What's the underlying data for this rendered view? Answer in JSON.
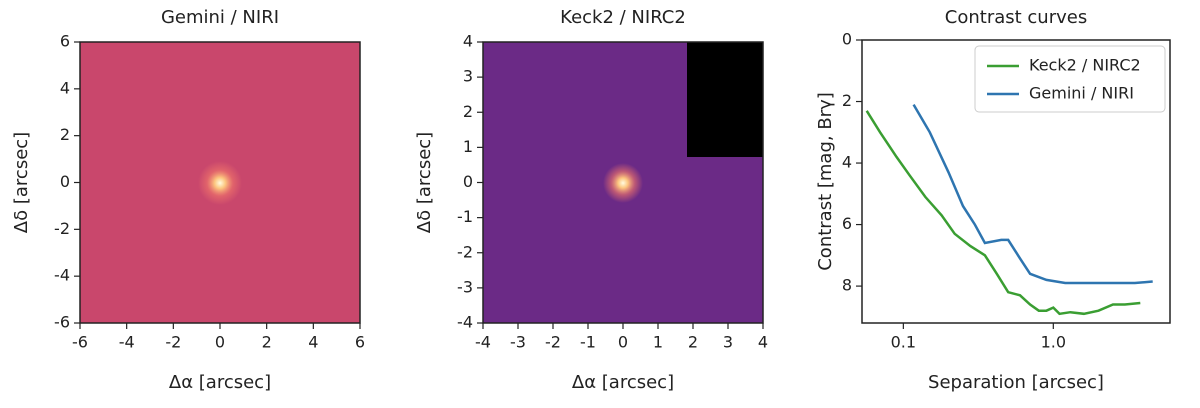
{
  "chart_data": [
    {
      "type": "image",
      "title": "Gemini / NIRI",
      "xlabel": "Δα [arcsec]",
      "ylabel": "Δδ [arcsec]",
      "xlim": [
        -6,
        6
      ],
      "ylim": [
        -6,
        6
      ],
      "xticks": [
        -6,
        -4,
        -2,
        0,
        2,
        4,
        6
      ],
      "yticks": [
        -6,
        -4,
        -2,
        0,
        2,
        4,
        6
      ]
    },
    {
      "type": "image",
      "title": "Keck2 / NIRC2",
      "xlabel": "Δα [arcsec]",
      "ylabel": "Δδ [arcsec]",
      "xlim": [
        -4,
        4
      ],
      "ylim": [
        -4,
        4
      ],
      "xticks": [
        -4,
        -3,
        -2,
        -1,
        0,
        1,
        2,
        3,
        4
      ],
      "yticks": [
        -4,
        -3,
        -2,
        -1,
        0,
        1,
        2,
        3,
        4
      ]
    },
    {
      "type": "line",
      "title": "Contrast curves",
      "xlabel": "Separation [arcsec]",
      "ylabel": "Contrast [mag, Brγ]",
      "xscale": "log",
      "yinverted": true,
      "legend": "upper right",
      "xlim": [
        0.053,
        6.0
      ],
      "ylim": [
        0,
        9.2
      ],
      "xticks": [
        0.1,
        {
          "value": 1,
          "label": "1.0"
        }
      ],
      "yticks": [
        0,
        2,
        4,
        6,
        8
      ],
      "series": [
        {
          "name": "Keck2 / NIRC2",
          "color": "#3a9e32",
          "x": [
            0.057,
            0.07,
            0.09,
            0.11,
            0.14,
            0.18,
            0.22,
            0.28,
            0.35,
            0.42,
            0.5,
            0.6,
            0.7,
            0.8,
            0.9,
            1.0,
            1.1,
            1.3,
            1.6,
            2.0,
            2.5,
            3.0,
            3.8
          ],
          "values": [
            2.3,
            3.0,
            3.8,
            4.4,
            5.1,
            5.7,
            6.3,
            6.7,
            7.0,
            7.6,
            8.2,
            8.3,
            8.6,
            8.8,
            8.8,
            8.7,
            8.9,
            8.85,
            8.9,
            8.8,
            8.6,
            8.6,
            8.55
          ]
        },
        {
          "name": "Gemini / NIRI",
          "color": "#2e75b0",
          "x": [
            0.117,
            0.15,
            0.2,
            0.25,
            0.3,
            0.35,
            0.45,
            0.5,
            0.6,
            0.7,
            0.9,
            1.2,
            1.6,
            2.5,
            3.5,
            4.6
          ],
          "values": [
            2.1,
            3.0,
            4.3,
            5.4,
            6.0,
            6.6,
            6.5,
            6.5,
            7.1,
            7.6,
            7.8,
            7.9,
            7.9,
            7.9,
            7.9,
            7.85
          ]
        }
      ]
    }
  ]
}
